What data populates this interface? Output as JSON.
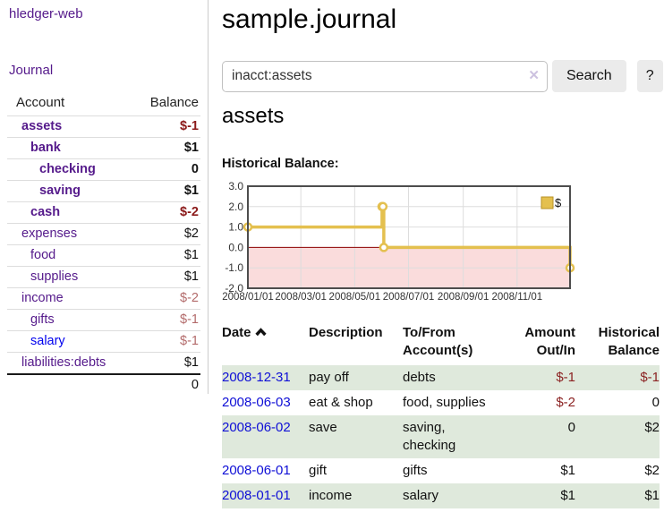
{
  "app": {
    "brand": "hledger-web",
    "nav_journal": "Journal"
  },
  "sidebar": {
    "header_account": "Account",
    "header_balance": "Balance",
    "accounts": [
      {
        "name": "assets",
        "balance": "$-1",
        "depth": 1,
        "matched": true
      },
      {
        "name": "bank",
        "balance": "$1",
        "depth": 2,
        "matched": true
      },
      {
        "name": "checking",
        "balance": "0",
        "depth": 3,
        "matched": true
      },
      {
        "name": "saving",
        "balance": "$1",
        "depth": 3,
        "matched": true
      },
      {
        "name": "cash",
        "balance": "$-2",
        "depth": 2,
        "matched": true
      },
      {
        "name": "expenses",
        "balance": "$2",
        "depth": 1,
        "matched": false
      },
      {
        "name": "food",
        "balance": "$1",
        "depth": 2,
        "matched": false
      },
      {
        "name": "supplies",
        "balance": "$1",
        "depth": 2,
        "matched": false
      },
      {
        "name": "income",
        "balance": "$-2",
        "depth": 1,
        "matched": false
      },
      {
        "name": "gifts",
        "balance": "$-1",
        "depth": 2,
        "matched": false
      },
      {
        "name": "salary",
        "balance": "$-1",
        "depth": 2,
        "matched": false
      },
      {
        "name": "liabilities:debts",
        "balance": "$1",
        "depth": 1,
        "matched": false
      }
    ],
    "total": "0"
  },
  "main": {
    "title": "sample.journal",
    "search": {
      "value": "inacct:assets",
      "clear_icon": "✕",
      "button_label": "Search",
      "help_label": "?"
    },
    "account_heading": "assets",
    "chart_section_title": "Historical Balance:"
  },
  "chart_data": {
    "type": "line",
    "title": "Historical Balance",
    "x_domain": [
      "2008-01-01",
      "2008-12-31"
    ],
    "ylim": [
      -2,
      3
    ],
    "y_ticks": [
      3,
      2,
      1,
      0,
      -1,
      -2
    ],
    "x_tick_dates": [
      "2008-01-01",
      "2008-03-01",
      "2008-05-01",
      "2008-07-01",
      "2008-09-01",
      "2008-11-01"
    ],
    "x_ticks": [
      "2008/01/01",
      "2008/03/01",
      "2008/05/01",
      "2008/07/01",
      "2008/09/01",
      "2008/11/01"
    ],
    "legend": {
      "label": "$",
      "position": "top-right"
    },
    "grid": true,
    "series": [
      {
        "name": "$",
        "step": true,
        "points": [
          {
            "date": "2008-01-01",
            "value": 1
          },
          {
            "date": "2008-06-01",
            "value": 2
          },
          {
            "date": "2008-06-02",
            "value": 2
          },
          {
            "date": "2008-06-03",
            "value": 0
          },
          {
            "date": "2008-12-31",
            "value": -1
          }
        ]
      }
    ],
    "colors": {
      "line": "#e4c04f",
      "marker_fill": "#ffffff",
      "negative_region": "#fadcdc",
      "zero_line": "#900000",
      "grid": "#dddddd",
      "border": "#4d4d4d",
      "legend_border": "#b89226"
    }
  },
  "register": {
    "headers": {
      "date": "Date",
      "description": "Description",
      "account_line1": "To/From",
      "account_line2": "Account(s)",
      "amount_line1": "Amount",
      "amount_line2": "Out/In",
      "balance_line1": "Historical",
      "balance_line2": "Balance"
    },
    "rows": [
      {
        "date": "2008-12-31",
        "description": "pay off",
        "accounts": "debts",
        "amount": "$-1",
        "balance": "$-1"
      },
      {
        "date": "2008-06-03",
        "description": "eat & shop",
        "accounts": "food, supplies",
        "amount": "$-2",
        "balance": "0"
      },
      {
        "date": "2008-06-02",
        "description": "save",
        "accounts": "saving,\nchecking",
        "amount": "0",
        "balance": "$2"
      },
      {
        "date": "2008-06-01",
        "description": "gift",
        "accounts": "gifts",
        "amount": "$1",
        "balance": "$2"
      },
      {
        "date": "2008-01-01",
        "description": "income",
        "accounts": "salary",
        "amount": "$1",
        "balance": "$1"
      }
    ]
  },
  "colors": {
    "link_visited": "#551a8b",
    "link_new": "#0000ee",
    "negative_strong": "#8b1a1a",
    "negative_soft": "#b36b6b",
    "row_stripe": "#dfe9dc",
    "accent_gold": "#e4c04f"
  }
}
